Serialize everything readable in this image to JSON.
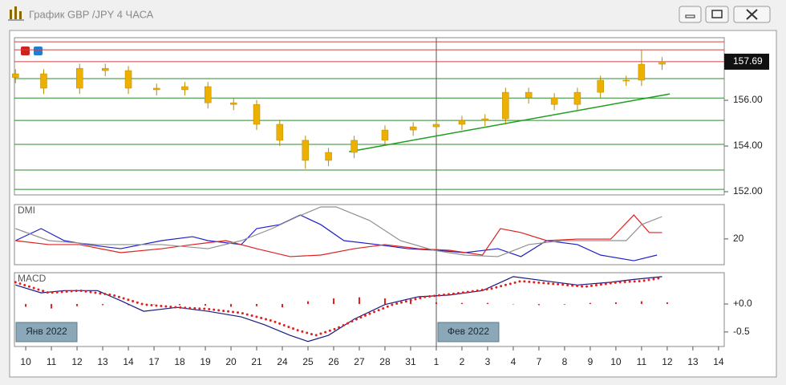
{
  "chart_data": [
    {
      "type": "candlestick",
      "title": "График GBP /JPY  4 ЧАСА",
      "color": "#ecb100",
      "wick_color": "#b88a00",
      "xlim": [
        -0.44,
        27.16
      ],
      "xticks": [
        {
          "value": 0,
          "label": "10"
        },
        {
          "value": 1,
          "label": "11"
        },
        {
          "value": 2,
          "label": "12"
        },
        {
          "value": 3,
          "label": "13"
        },
        {
          "value": 4,
          "label": "14"
        },
        {
          "value": 5,
          "label": "17"
        },
        {
          "value": 6,
          "label": "18"
        },
        {
          "value": 7,
          "label": "19"
        },
        {
          "value": 8,
          "label": "20"
        },
        {
          "value": 9,
          "label": "21"
        },
        {
          "value": 10,
          "label": "24"
        },
        {
          "value": 11,
          "label": "25"
        },
        {
          "value": 12,
          "label": "26"
        },
        {
          "value": 13,
          "label": "27"
        },
        {
          "value": 14,
          "label": "28"
        },
        {
          "value": 15,
          "label": "31"
        },
        {
          "value": 16,
          "label": "1"
        },
        {
          "value": 17,
          "label": "2"
        },
        {
          "value": 18,
          "label": "3"
        },
        {
          "value": 19,
          "label": "4"
        },
        {
          "value": 20,
          "label": "7"
        },
        {
          "value": 21,
          "label": "8"
        },
        {
          "value": 22,
          "label": "9"
        },
        {
          "value": 23,
          "label": "10"
        },
        {
          "value": 24,
          "label": "11"
        },
        {
          "value": 25,
          "label": "12"
        },
        {
          "value": 26,
          "label": "13"
        },
        {
          "value": 27,
          "label": "14"
        }
      ],
      "ylim": [
        151.86,
        158.74
      ],
      "yticks": [
        {
          "value": 152,
          "label": "152.00"
        },
        {
          "value": 154,
          "label": "154.00"
        },
        {
          "value": 156,
          "label": "156.00"
        }
      ],
      "last_price": 157.69,
      "x": [
        -0.4,
        0.7,
        2.1,
        3.1,
        4,
        5.1,
        6.2,
        7.1,
        8.1,
        9,
        9.9,
        10.9,
        11.8,
        12.8,
        14,
        15.1,
        16,
        17,
        17.9,
        18.7,
        19.6,
        20.6,
        21.5,
        22.4,
        23.4,
        24,
        24.8
      ],
      "open": [
        157.0,
        157.16,
        156.53,
        157.4,
        157.3,
        156.53,
        156.46,
        156.6,
        155.89,
        155.82,
        154.95,
        154.25,
        153.37,
        153.72,
        154.25,
        154.7,
        154.84,
        154.95,
        155.12,
        155.19,
        156.35,
        156.11,
        155.82,
        156.35,
        156.88,
        156.88,
        157.58
      ],
      "high": [
        157.36,
        157.36,
        157.6,
        157.6,
        157.5,
        156.73,
        156.8,
        156.8,
        156.09,
        156.02,
        155.15,
        154.45,
        153.92,
        154.45,
        154.9,
        155.04,
        155.15,
        155.32,
        155.39,
        156.55,
        156.55,
        156.31,
        156.55,
        157.08,
        157.08,
        158.2,
        157.89
      ],
      "low": [
        156.75,
        156.28,
        156.28,
        157.05,
        156.28,
        156.21,
        156.21,
        155.64,
        155.57,
        154.7,
        154.0,
        153.0,
        153.12,
        153.47,
        154.0,
        154.45,
        154.59,
        154.7,
        154.87,
        154.94,
        155.86,
        155.57,
        155.57,
        156.1,
        156.63,
        156.63,
        157.33
      ],
      "close": [
        157.16,
        156.53,
        157.4,
        157.3,
        156.53,
        156.46,
        156.6,
        155.89,
        155.82,
        154.95,
        154.25,
        153.37,
        153.72,
        154.25,
        154.7,
        154.84,
        154.95,
        155.12,
        155.19,
        156.35,
        156.11,
        155.82,
        156.35,
        156.88,
        156.88,
        157.58,
        157.69
      ],
      "levels": [
        {
          "value": 158.56,
          "color": "#d04040"
        },
        {
          "value": 158.21,
          "color": "#d04040"
        },
        {
          "value": 157.69,
          "color": "#d04040"
        },
        {
          "value": 156.95,
          "color": "#2e8b2e"
        },
        {
          "value": 156.1,
          "color": "#2e8b2e"
        },
        {
          "value": 155.12,
          "color": "#2e8b2e"
        },
        {
          "value": 154.07,
          "color": "#2e8b2e"
        },
        {
          "value": 152.95,
          "color": "#2e8b2e"
        },
        {
          "value": 152.1,
          "color": "#2e8b2e"
        }
      ],
      "trendline": {
        "color": "#1e9e1e",
        "x": [
          12.6,
          25.1
        ],
        "values": [
          153.75,
          156.28
        ]
      }
    },
    {
      "type": "line",
      "title": "DMI",
      "ylim": [
        5,
        40
      ],
      "yticks": [
        20
      ],
      "series": [
        {
          "color": "#2020c8",
          "x": [
            -0.4,
            0.6,
            1.5,
            2.4,
            3.7,
            5.3,
            6.5,
            7.1,
            8.4,
            9,
            9.9,
            10.7,
            11.5,
            12.4,
            13.7,
            14.9,
            16,
            17.1,
            18.4,
            19.3,
            20.3,
            21.5,
            22.4,
            23.7,
            24.6
          ],
          "values": [
            19.0,
            26.0,
            19.0,
            16.7,
            14.3,
            19.0,
            21.3,
            19.0,
            16.7,
            26.0,
            28.3,
            33.9,
            28.3,
            19.0,
            16.7,
            14.3,
            13.4,
            12.0,
            14.3,
            9.7,
            19.0,
            16.7,
            10.6,
            7.3,
            10.6
          ]
        },
        {
          "color": "#e02020",
          "x": [
            -0.4,
            0.9,
            2.1,
            3.7,
            5.3,
            6.5,
            7.8,
            9,
            10.3,
            11.5,
            12.8,
            14,
            15.3,
            16.5,
            17.8,
            18.5,
            19.3,
            20.3,
            21.5,
            22.8,
            23.7,
            24.3,
            24.8
          ],
          "values": [
            19.0,
            16.7,
            16.7,
            12.0,
            14.3,
            16.7,
            19.0,
            14.3,
            9.7,
            10.6,
            14.3,
            16.7,
            14.3,
            13.4,
            10.6,
            26.0,
            23.7,
            19.0,
            19.9,
            19.9,
            33.9,
            23.7,
            23.7
          ]
        },
        {
          "color": "#909090",
          "x": [
            -0.4,
            0.9,
            2.8,
            5.3,
            7.1,
            8.4,
            9.6,
            10.6,
            11.5,
            12.1,
            13.4,
            14.6,
            15.9,
            17.1,
            18.4,
            19.6,
            20.9,
            22.1,
            23.4,
            24,
            24.8
          ],
          "values": [
            26.0,
            19.0,
            16.7,
            16.7,
            14.3,
            19.0,
            26.0,
            33.0,
            38.6,
            38.6,
            30.7,
            19.0,
            13.4,
            10.6,
            9.7,
            16.7,
            19.0,
            19.0,
            19.0,
            28.3,
            33.0
          ]
        }
      ]
    },
    {
      "type": "line",
      "title": "MACD",
      "ylim": [
        -0.76,
        0.56
      ],
      "yticks": [
        {
          "value": 0,
          "label": "+0.0"
        },
        -0.5
      ],
      "annotations": [
        "Янв 2022",
        "Фев 2022"
      ],
      "series": [
        {
          "color": "#1a1a80",
          "x": [
            -0.4,
            0.6,
            1.5,
            2.8,
            3.7,
            4.6,
            5.9,
            7.1,
            8.4,
            9.3,
            10.3,
            11,
            11.8,
            12.8,
            14,
            15.3,
            16.5,
            17.8,
            19,
            20.3,
            21.5,
            22.8,
            23.7,
            24.8
          ],
          "values": [
            0.34,
            0.2,
            0.24,
            0.24,
            0.06,
            -0.13,
            -0.06,
            -0.13,
            -0.23,
            -0.37,
            -0.56,
            -0.67,
            -0.56,
            -0.27,
            -0.01,
            0.13,
            0.16,
            0.24,
            0.49,
            0.41,
            0.34,
            0.39,
            0.44,
            0.49
          ]
        },
        {
          "color": "#e02020",
          "style": "dotted",
          "x": [
            -0.4,
            0.9,
            2.1,
            3.4,
            4.6,
            5.9,
            7.1,
            8.4,
            9.6,
            10.6,
            11.3,
            12.1,
            13.1,
            14.3,
            15.6,
            16.8,
            18.1,
            19.3,
            20.6,
            21.8,
            23.1,
            24,
            24.8
          ],
          "values": [
            0.39,
            0.2,
            0.24,
            0.16,
            -0.01,
            -0.06,
            -0.09,
            -0.16,
            -0.3,
            -0.47,
            -0.56,
            -0.44,
            -0.23,
            -0.01,
            0.13,
            0.19,
            0.27,
            0.41,
            0.36,
            0.31,
            0.39,
            0.41,
            0.47
          ]
        }
      ],
      "histogram": {
        "color": "#e02020",
        "x": [
          0,
          1,
          2,
          3,
          4,
          5,
          6,
          7,
          8,
          9,
          10,
          11,
          12,
          13,
          14,
          15,
          16,
          17,
          18,
          19,
          20,
          21,
          22,
          23,
          24,
          25
        ],
        "values": [
          -0.05,
          -0.08,
          -0.04,
          -0.02,
          -0.02,
          0,
          -0.02,
          -0.03,
          -0.05,
          -0.04,
          -0.06,
          0.05,
          0.1,
          0.12,
          0.1,
          0.05,
          0.03,
          0.02,
          0.02,
          0,
          -0.02,
          -0.01,
          0.02,
          0.03,
          0.05,
          0.03
        ]
      }
    }
  ]
}
